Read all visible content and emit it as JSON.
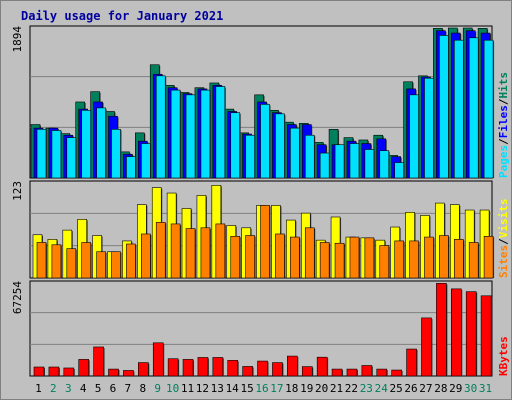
{
  "title": "Daily usage for January 2021",
  "colors": {
    "hits": "#00805c",
    "files": "#0000ff",
    "pages": "#00e0ff",
    "visits": "#ffff00",
    "sites": "#ff8000",
    "kbytes": "#ff0000",
    "weekday_label": "#000000",
    "weekend_label": "#00805c",
    "title": "#0000a0",
    "slash": "#000000"
  },
  "chart_data": [
    {
      "type": "bar",
      "name": "hits-files-pages",
      "side_labels": [
        "Pages",
        "/",
        "Files",
        "/",
        "Hits"
      ],
      "y_tick_label": "1894",
      "ylim": [
        0,
        1894
      ],
      "grid": true,
      "x": [
        1,
        2,
        3,
        4,
        5,
        6,
        7,
        8,
        9,
        10,
        11,
        12,
        13,
        14,
        15,
        16,
        17,
        18,
        19,
        20,
        21,
        22,
        23,
        24,
        25,
        26,
        27,
        28,
        29,
        30,
        31
      ],
      "series": [
        {
          "name": "Hits",
          "values": [
            675,
            630,
            560,
            960,
            1090,
            840,
            330,
            570,
            1430,
            1170,
            1080,
            1140,
            1200,
            870,
            570,
            1050,
            855,
            705,
            690,
            450,
            615,
            510,
            480,
            540,
            285,
            1215,
            1290,
            1890,
            1894,
            1894,
            1890
          ]
        },
        {
          "name": "Files",
          "values": [
            630,
            630,
            540,
            870,
            960,
            780,
            300,
            465,
            1310,
            1140,
            1065,
            1125,
            1170,
            840,
            555,
            960,
            825,
            675,
            675,
            420,
            420,
            465,
            435,
            495,
            270,
            1125,
            1275,
            1860,
            1830,
            1860,
            1830
          ]
        },
        {
          "name": "Pages",
          "values": [
            615,
            600,
            510,
            855,
            885,
            615,
            270,
            435,
            1290,
            1110,
            1050,
            1110,
            1155,
            825,
            540,
            930,
            810,
            630,
            540,
            315,
            420,
            435,
            360,
            345,
            195,
            1050,
            1260,
            1800,
            1740,
            1770,
            1740
          ]
        }
      ]
    },
    {
      "type": "bar",
      "name": "visits-sites",
      "side_labels": [
        "Sites",
        "/",
        "Visits"
      ],
      "y_tick_label": "123",
      "ylim": [
        0,
        123
      ],
      "grid": true,
      "x": [
        1,
        2,
        3,
        4,
        5,
        6,
        7,
        8,
        9,
        10,
        11,
        12,
        13,
        14,
        15,
        16,
        17,
        18,
        19,
        20,
        21,
        22,
        23,
        24,
        25,
        26,
        27,
        28,
        29,
        30,
        31
      ],
      "series": [
        {
          "name": "Visits",
          "values": [
            56,
            50,
            62,
            76,
            55,
            34,
            48,
            95,
            117,
            110,
            90,
            107,
            120,
            68,
            65,
            94,
            94,
            75,
            84,
            49,
            79,
            53,
            52,
            49,
            66,
            85,
            81,
            97,
            95,
            88,
            88
          ]
        },
        {
          "name": "Sites",
          "values": [
            46,
            43,
            38,
            46,
            34,
            34,
            44,
            57,
            72,
            70,
            64,
            65,
            70,
            54,
            55,
            94,
            57,
            53,
            65,
            46,
            45,
            53,
            52,
            42,
            48,
            48,
            53,
            55,
            50,
            46,
            54
          ]
        }
      ]
    },
    {
      "type": "bar",
      "name": "kbytes",
      "side_labels": [
        "KBytes"
      ],
      "y_tick_label": "67254",
      "ylim": [
        0,
        67254
      ],
      "grid": true,
      "x": [
        1,
        2,
        3,
        4,
        5,
        6,
        7,
        8,
        9,
        10,
        11,
        12,
        13,
        14,
        15,
        16,
        17,
        18,
        19,
        20,
        21,
        22,
        23,
        24,
        25,
        26,
        27,
        28,
        29,
        30,
        31
      ],
      "series": [
        {
          "name": "KBytes",
          "values": [
            6500,
            6500,
            5800,
            12000,
            21000,
            5000,
            4000,
            9700,
            24000,
            12500,
            12000,
            13400,
            13400,
            11300,
            6900,
            10800,
            9700,
            14400,
            6800,
            13600,
            5000,
            5000,
            7600,
            5000,
            4300,
            19500,
            42000,
            67000,
            63000,
            61000,
            58000
          ]
        }
      ]
    }
  ],
  "x_labels": [
    {
      "text": "1",
      "weekend": false
    },
    {
      "text": "2",
      "weekend": true
    },
    {
      "text": "3",
      "weekend": true
    },
    {
      "text": "4",
      "weekend": false
    },
    {
      "text": "5",
      "weekend": false
    },
    {
      "text": "6",
      "weekend": false
    },
    {
      "text": "7",
      "weekend": false
    },
    {
      "text": "8",
      "weekend": false
    },
    {
      "text": "9",
      "weekend": true
    },
    {
      "text": "10",
      "weekend": true
    },
    {
      "text": "11",
      "weekend": false
    },
    {
      "text": "12",
      "weekend": false
    },
    {
      "text": "13",
      "weekend": false
    },
    {
      "text": "14",
      "weekend": false
    },
    {
      "text": "15",
      "weekend": false
    },
    {
      "text": "16",
      "weekend": true
    },
    {
      "text": "17",
      "weekend": true
    },
    {
      "text": "18",
      "weekend": false
    },
    {
      "text": "19",
      "weekend": false
    },
    {
      "text": "20",
      "weekend": false
    },
    {
      "text": "21",
      "weekend": false
    },
    {
      "text": "22",
      "weekend": false
    },
    {
      "text": "23",
      "weekend": true
    },
    {
      "text": "24",
      "weekend": true
    },
    {
      "text": "25",
      "weekend": false
    },
    {
      "text": "26",
      "weekend": false
    },
    {
      "text": "27",
      "weekend": false
    },
    {
      "text": "28",
      "weekend": false
    },
    {
      "text": "29",
      "weekend": false
    },
    {
      "text": "30",
      "weekend": true
    },
    {
      "text": "31",
      "weekend": true
    }
  ]
}
